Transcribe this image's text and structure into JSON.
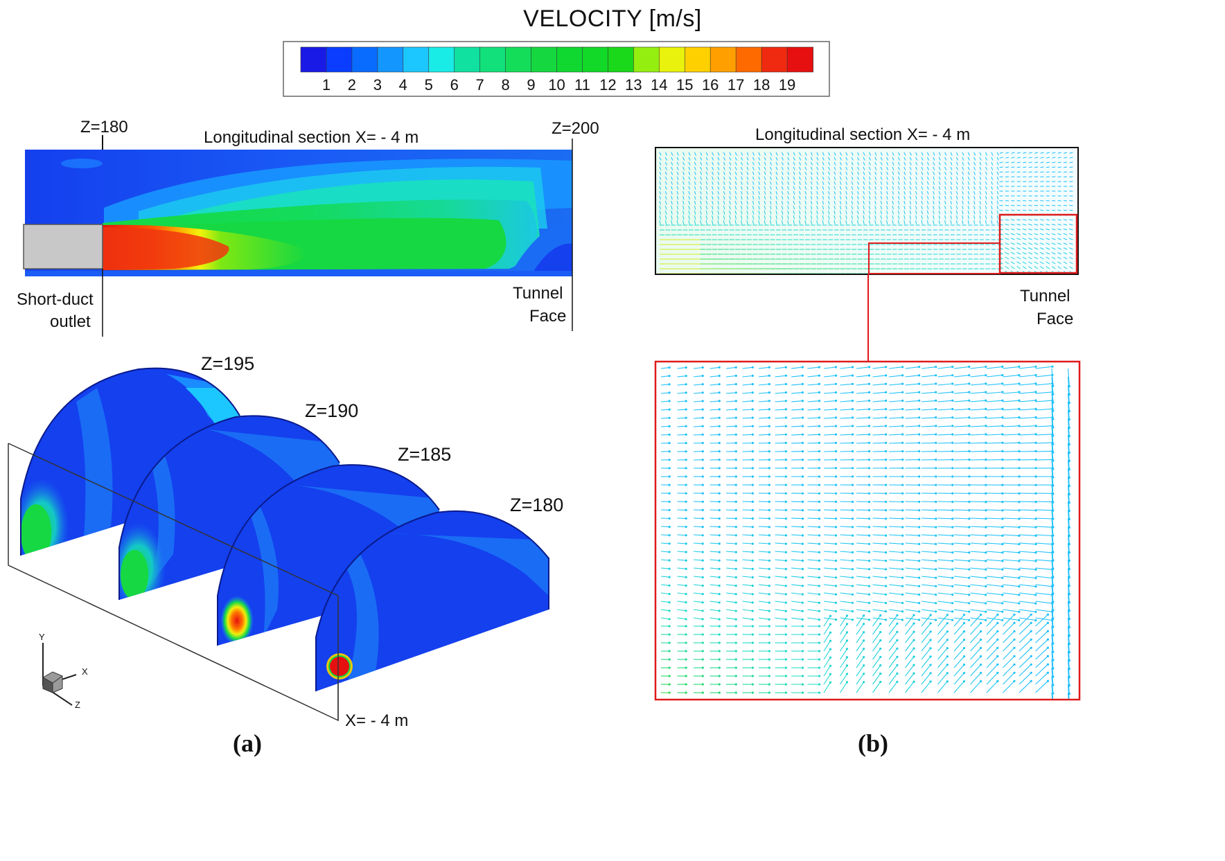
{
  "legend": {
    "title": "VELOCITY [m/s]",
    "ticks": [
      "1",
      "2",
      "3",
      "4",
      "5",
      "6",
      "7",
      "8",
      "9",
      "10",
      "11",
      "12",
      "13",
      "14",
      "15",
      "16",
      "17",
      "18",
      "19"
    ],
    "colors": [
      "#1a1ae6",
      "#0a3dff",
      "#0a6cff",
      "#1496ff",
      "#1cc7ff",
      "#19ece6",
      "#10e0a0",
      "#12e07a",
      "#14dd5a",
      "#15d840",
      "#10d830",
      "#12d828",
      "#1ad81a",
      "#94ee10",
      "#e8f20c",
      "#ffd000",
      "#ffa000",
      "#ff6a00",
      "#f02a10",
      "#e61010"
    ]
  },
  "panel_a": {
    "label": "(a)",
    "top_section": {
      "title": "Longitudinal section X= - 4 m",
      "z_start": "Z=180",
      "z_end": "Z=200",
      "outlet_label_1": "Short-duct",
      "outlet_label_2": "outlet",
      "face_label_1": "Tunnel",
      "face_label_2": "Face"
    },
    "cross_sections": [
      "Z=195",
      "Z=190",
      "Z=185",
      "Z=180"
    ],
    "plane_label": "X= - 4 m",
    "axes": {
      "y": "Y",
      "x": "X",
      "z": "Z"
    }
  },
  "panel_b": {
    "label": "(b)",
    "section_title": "Longitudinal section X= - 4 m",
    "face_label_1": "Tunnel",
    "face_label_2": "Face"
  }
}
